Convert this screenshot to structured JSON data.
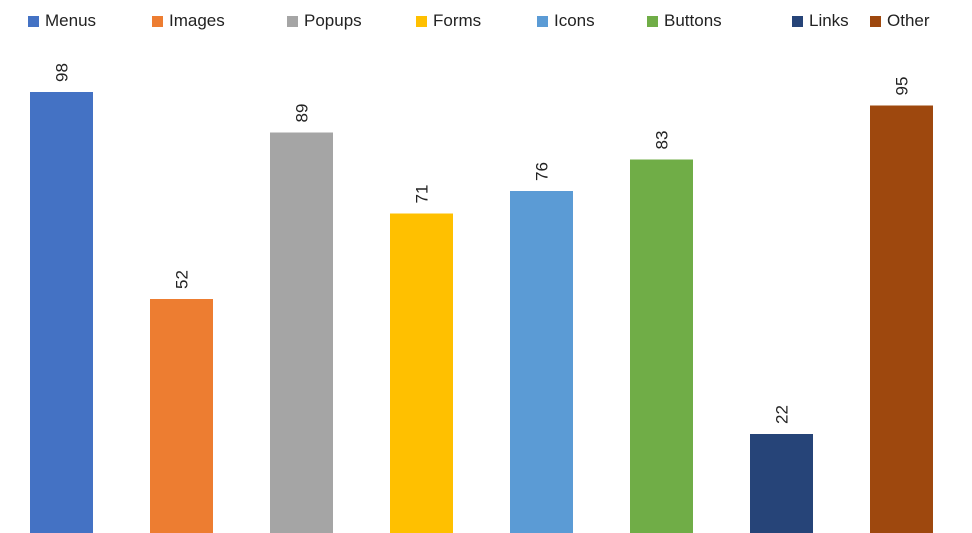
{
  "chart_data": {
    "type": "bar",
    "categories": [
      "Menus",
      "Images",
      "Popups",
      "Forms",
      "Icons",
      "Buttons",
      "Links",
      "Other"
    ],
    "values": [
      98,
      52,
      89,
      71,
      76,
      83,
      22,
      95
    ],
    "colors": [
      "#4472C4",
      "#ED7D31",
      "#A5A5A5",
      "#FFC000",
      "#5B9BD5",
      "#70AD47",
      "#264478",
      "#9E480E"
    ],
    "data_labels": [
      "98",
      "52",
      "89",
      "71",
      "76",
      "83",
      "22",
      "95"
    ],
    "legend_position": "top",
    "grid": false,
    "axes_visible": false,
    "data_label_orientation": "vertical",
    "ylim": [
      0,
      98
    ]
  }
}
